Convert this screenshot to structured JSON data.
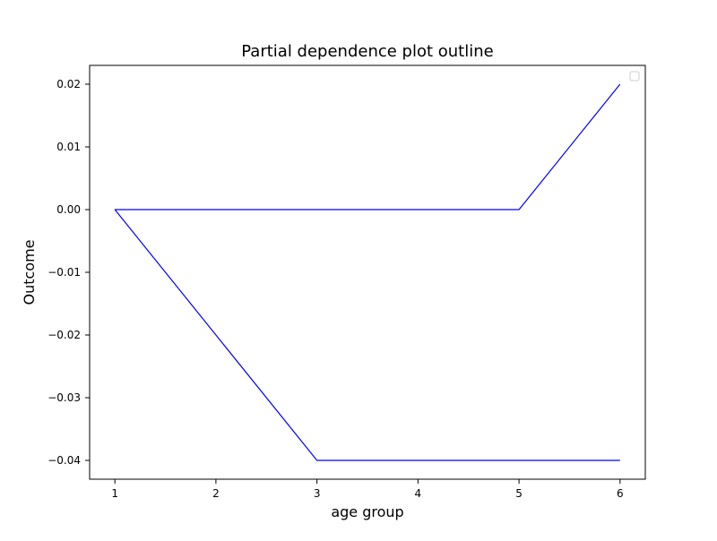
{
  "chart_data": {
    "type": "line",
    "title": "Partial dependence plot outline",
    "xlabel": "age group",
    "ylabel": "Outcome",
    "xlim": [
      0.75,
      6.25
    ],
    "ylim": [
      -0.043,
      0.023
    ],
    "x_ticks": [
      1,
      2,
      3,
      4,
      5,
      6
    ],
    "y_ticks": [
      0.02,
      0.01,
      0.0,
      -0.01,
      -0.02,
      -0.03,
      -0.04
    ],
    "x_tick_labels": [
      "1",
      "2",
      "3",
      "4",
      "5",
      "6"
    ],
    "y_tick_labels": [
      "0.02",
      "0.01",
      "0.00",
      "−0.01",
      "−0.02",
      "−0.03",
      "−0.04"
    ],
    "grid": false,
    "legend": "top-right",
    "series": [
      {
        "color": "#0000ff",
        "x": [
          1,
          3,
          6
        ],
        "y": [
          0.0,
          -0.04,
          -0.04
        ]
      },
      {
        "color": "#0000ff",
        "x": [
          1,
          5,
          6
        ],
        "y": [
          0.0,
          0.0,
          0.02
        ]
      }
    ]
  }
}
